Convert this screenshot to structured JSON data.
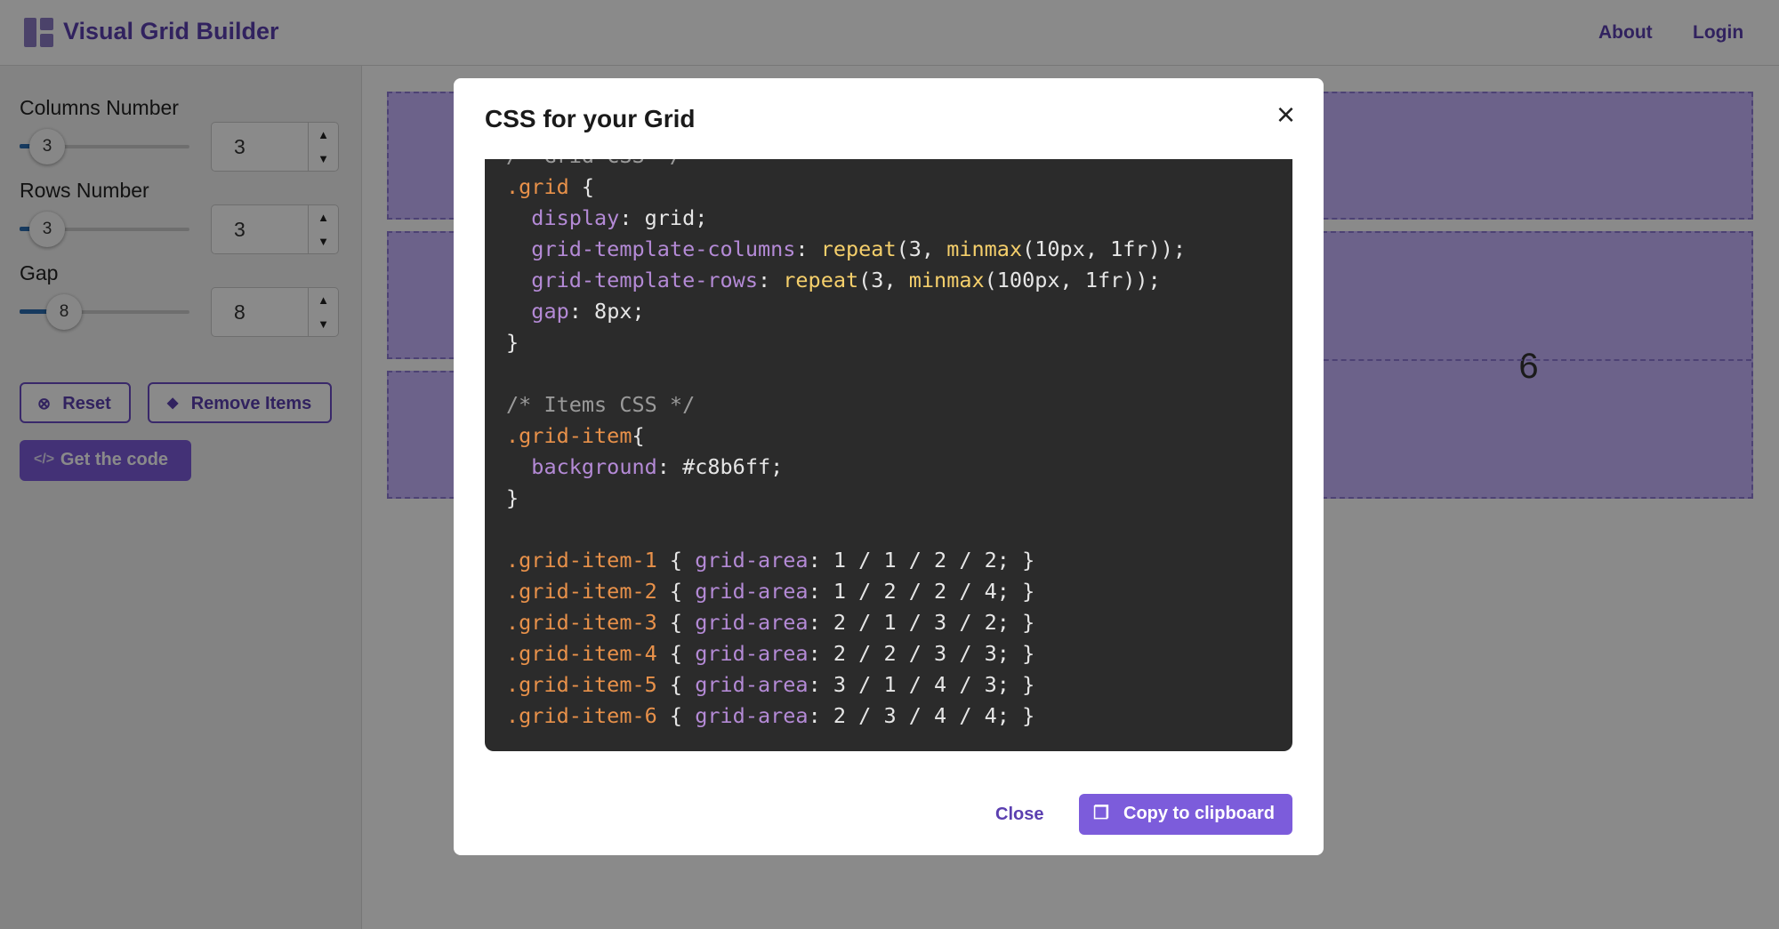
{
  "header": {
    "title": "Visual Grid Builder",
    "nav": [
      "About",
      "Login"
    ]
  },
  "sidebar": {
    "controls": [
      {
        "label": "Columns Number",
        "value": 3
      },
      {
        "label": "Rows Number",
        "value": 3
      },
      {
        "label": "Gap",
        "value": 8
      }
    ],
    "buttons": [
      "Reset",
      "Remove Items",
      "Get the code"
    ]
  },
  "grid": {
    "visible_item": "6"
  },
  "modal": {
    "title": "CSS for your Grid",
    "code": "/* Grid CSS */\n.grid {\n  display: grid;\n  grid-template-columns: repeat(3, minmax(10px, 1fr));\n  grid-template-rows: repeat(3, minmax(100px, 1fr));\n  gap: 8px;\n}\n\n/* Items CSS */\n.grid-item{\n  background: #c8b6ff;\n}\n\n.grid-item-1 { grid-area: 1 / 1 / 2 / 2; }\n.grid-item-2 { grid-area: 1 / 2 / 2 / 4; }\n.grid-item-3 { grid-area: 2 / 1 / 3 / 2; }\n.grid-item-4 { grid-area: 2 / 2 / 3 / 3; }\n.grid-item-5 { grid-area: 3 / 1 / 4 / 3; }\n.grid-item-6 { grid-area: 2 / 3 / 4 / 4; }",
    "buttons": [
      "Close",
      "Copy to clipboard"
    ]
  }
}
